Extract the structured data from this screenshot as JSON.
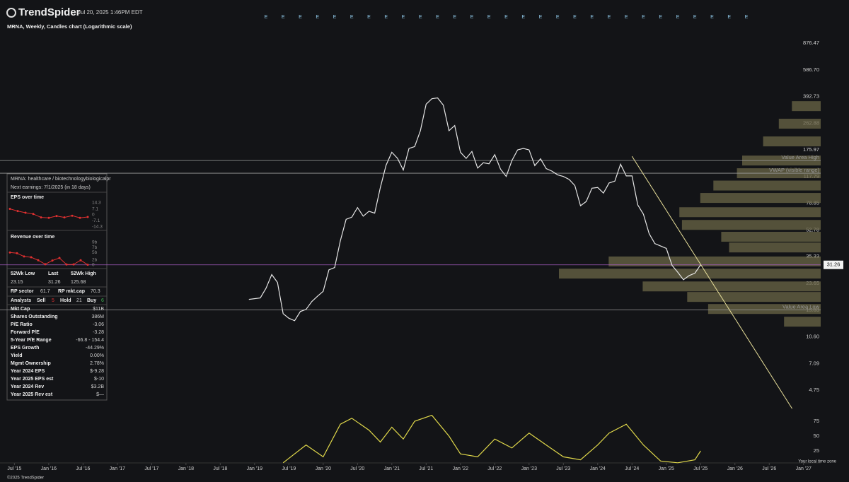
{
  "header": {
    "brand": "TrendSpider",
    "timestamp": "Jul 20, 2025 1:46PM EDT"
  },
  "chart_data": [
    {
      "type": "line",
      "title": "MRNA, Weekly, Candles chart (Logarithmic scale)",
      "log_scale": true,
      "color": "#e6e6e6",
      "x": [
        "2018-12",
        "2019-02",
        "2019-03",
        "2019-04",
        "2019-05",
        "2019-06",
        "2019-07",
        "2019-08",
        "2019-09",
        "2019-10",
        "2019-11",
        "2019-12",
        "2020-01",
        "2020-02",
        "2020-03",
        "2020-04",
        "2020-05",
        "2020-06",
        "2020-07",
        "2020-08",
        "2020-09",
        "2020-10",
        "2020-11",
        "2020-12",
        "2021-01",
        "2021-02",
        "2021-03",
        "2021-04",
        "2021-05",
        "2021-06",
        "2021-07",
        "2021-08",
        "2021-09",
        "2021-10",
        "2021-11",
        "2021-12",
        "2022-01",
        "2022-02",
        "2022-03",
        "2022-04",
        "2022-05",
        "2022-06",
        "2022-07",
        "2022-08",
        "2022-09",
        "2022-10",
        "2022-11",
        "2022-12",
        "2023-01",
        "2023-02",
        "2023-03",
        "2023-04",
        "2023-05",
        "2023-06",
        "2023-07",
        "2023-08",
        "2023-09",
        "2023-10",
        "2023-11",
        "2023-12",
        "2024-01",
        "2024-02",
        "2024-03",
        "2024-04",
        "2024-05",
        "2024-06",
        "2024-07",
        "2024-08",
        "2024-09",
        "2024-10",
        "2024-11",
        "2024-12",
        "2025-01",
        "2025-02",
        "2025-03",
        "2025-04",
        "2025-05",
        "2025-06",
        "2025-07"
      ],
      "values": [
        18.6,
        19,
        22,
        27,
        24,
        15,
        14,
        13.5,
        15.5,
        16,
        18,
        19.5,
        21,
        29,
        30,
        45,
        62,
        64,
        74,
        65,
        70,
        68,
        100,
        140,
        170,
        155,
        130,
        180,
        185,
        235,
        350,
        380,
        385,
        345,
        235,
        254,
        170,
        155,
        172,
        134,
        145,
        143,
        164,
        132,
        118,
        150,
        176,
        180,
        176,
        139,
        154,
        133,
        128,
        121,
        118,
        113,
        103,
        76,
        81,
        99,
        100,
        92,
        107,
        110,
        142,
        119,
        119,
        77,
        67,
        50,
        43,
        41.5,
        40,
        31,
        28,
        25,
        26.6,
        27.6,
        31.26
      ],
      "xlim": [
        2015.29,
        2027.25
      ],
      "xticks": [
        {
          "value": 2015.5,
          "label": "Jul '15"
        },
        {
          "value": 2016,
          "label": "Jan '16"
        },
        {
          "value": 2016.5,
          "label": "Jul '16"
        },
        {
          "value": 2017,
          "label": "Jan '17"
        },
        {
          "value": 2017.5,
          "label": "Jul '17"
        },
        {
          "value": 2018,
          "label": "Jan '18"
        },
        {
          "value": 2018.5,
          "label": "Jul '18"
        },
        {
          "value": 2019,
          "label": "Jan '19"
        },
        {
          "value": 2019.5,
          "label": "Jul '19"
        },
        {
          "value": 2020,
          "label": "Jan '20"
        },
        {
          "value": 2020.5,
          "label": "Jul '20"
        },
        {
          "value": 2021,
          "label": "Jan '21"
        },
        {
          "value": 2021.5,
          "label": "Jul '21"
        },
        {
          "value": 2022,
          "label": "Jan '22"
        },
        {
          "value": 2022.5,
          "label": "Jul '22"
        },
        {
          "value": 2023,
          "label": "Jan '23"
        },
        {
          "value": 2023.5,
          "label": "Jul '23"
        },
        {
          "value": 2024,
          "label": "Jan '24"
        },
        {
          "value": 2024.5,
          "label": "Jul '24"
        },
        {
          "value": 2025,
          "label": "Jan '25"
        },
        {
          "value": 2025.5,
          "label": "Jul '25"
        },
        {
          "value": 2026,
          "label": "Jan '26"
        },
        {
          "value": 2026.5,
          "label": "Jul '26"
        },
        {
          "value": 2027,
          "label": "Jan '27"
        }
      ],
      "ylim": [
        3.53,
        1096
      ],
      "yticks": [
        876.47,
        {
          "value": 586.7,
          "label": "586.70"
        },
        392.73,
        262.88,
        175.97,
        117.79,
        78.85,
        52.78,
        35.33,
        23.65,
        15.83,
        {
          "value": 10.6,
          "label": "10.60"
        },
        7.09,
        4.75
      ],
      "last_price": 31.26,
      "last_price_color": "#a45ac0",
      "reference_lines": [
        {
          "label": "Value Area High",
          "value": 150
        },
        {
          "label": "VWAP (visible range)",
          "value": 124
        },
        {
          "label": "Value Area Low",
          "value": 15.9
        }
      ],
      "trendline": {
        "x": [
          "2024-07",
          "2026-11"
        ],
        "values": [
          160,
          3.6
        ],
        "color": "#e8df9a"
      },
      "volume_profile": {
        "color": "#6b6647",
        "levels": [
          340,
          261,
          200,
          150,
          124,
          103,
          85.5,
          69,
          57,
          47.7,
          40.6,
          32.9,
          27.4,
          22.6,
          19.3,
          16.1,
          13.3
        ],
        "values": [
          11,
          16,
          22,
          30,
          32,
          41,
          46,
          54,
          53,
          38,
          35,
          81,
          100,
          68,
          51,
          43,
          14
        ]
      },
      "earnings": {
        "label": "E",
        "x": [
          "2019-03",
          "2019-06",
          "2019-09",
          "2019-12",
          "2020-03",
          "2020-06",
          "2020-09",
          "2020-12",
          "2021-03",
          "2021-06",
          "2021-09",
          "2021-12",
          "2022-03",
          "2022-06",
          "2022-09",
          "2022-12",
          "2023-03",
          "2023-06",
          "2023-09",
          "2023-12",
          "2024-03",
          "2024-06",
          "2024-09",
          "2024-12",
          "2025-03",
          "2025-06",
          "2025-09",
          "2025-12",
          "2026-03"
        ],
        "color": "#8fc8e8"
      }
    },
    {
      "type": "line",
      "color": "#e0d84a",
      "x": [
        "2019-06",
        "2019-10",
        "2020-01",
        "2020-04",
        "2020-06",
        "2020-09",
        "2020-11",
        "2021-01",
        "2021-03",
        "2021-05",
        "2021-08",
        "2021-11",
        "2022-01",
        "2022-04",
        "2022-07",
        "2022-10",
        "2023-01",
        "2023-04",
        "2023-07",
        "2023-10",
        "2024-01",
        "2024-03",
        "2024-06",
        "2024-09",
        "2024-12",
        "2025-03",
        "2025-06",
        "2025-07"
      ],
      "values": [
        5,
        35,
        15,
        70,
        80,
        60,
        40,
        65,
        45,
        75,
        85,
        50,
        20,
        15,
        45,
        30,
        55,
        35,
        15,
        10,
        35,
        55,
        70,
        35,
        8,
        5,
        10,
        25
      ],
      "xlim": [
        2015.29,
        2027.25
      ],
      "ylim": [
        0,
        100
      ],
      "yticks": [
        25,
        50,
        75
      ]
    }
  ],
  "info_panel": {
    "sector": "MRNA: healthcare / biotechnologybiologicalpr",
    "next_earnings": "Next earnings: 7/1/2025 (in 18 days)",
    "eps": {
      "title": "EPS over time",
      "color": "#e03030",
      "ylim": [
        -14.3,
        14.3
      ],
      "yticks": [
        14.3,
        7.1,
        0,
        -7.1,
        -14.3
      ],
      "values": [
        7.1,
        4.5,
        2.5,
        1,
        -3,
        -3.6,
        -1.4,
        -3,
        -1,
        -3.6,
        -2.5
      ]
    },
    "revenue": {
      "title": "Revenue over time",
      "color": "#e03030",
      "ylim": [
        0,
        9
      ],
      "yticks": [
        {
          "value": 9,
          "label": "9b"
        },
        {
          "value": 7,
          "label": "7b"
        },
        {
          "value": 5,
          "label": "5b"
        },
        {
          "value": 2,
          "label": "2b"
        },
        0
      ],
      "values": [
        5,
        4.7,
        3.4,
        3.1,
        1.9,
        0.3,
        1.8,
        2.8,
        0.2,
        0.24,
        1.9,
        0.1
      ]
    },
    "stats_header": [
      "52Wk Low",
      "Last",
      "52Wk High"
    ],
    "stats": [
      23.15,
      31.26,
      125.68
    ],
    "rp": [
      [
        "RP sector",
        61.7
      ],
      [
        "RP mkt.cap",
        70.3
      ]
    ],
    "analysts": {
      "label": "Analysts",
      "sell": [
        "Sell",
        5
      ],
      "hold": [
        "Hold",
        21
      ],
      "buy": [
        "Buy",
        6
      ]
    },
    "rows": [
      [
        "Mkt Cap",
        "$11B"
      ],
      [
        "Shares Outstanding",
        "386M"
      ],
      [
        "P/E Ratio",
        "-3.06"
      ],
      [
        "Forward P/E",
        "-3.28"
      ],
      [
        "5-Year P/E Range",
        "-66.8 - 154.4"
      ],
      [
        "EPS Growth",
        "-44.29%"
      ],
      [
        "Yield",
        "0.00%"
      ],
      [
        "Mgmt Ownership",
        "2.78%"
      ],
      [
        "Year 2024 EPS",
        "$-9.28"
      ],
      [
        "Year 2025 EPS est",
        "$-10"
      ],
      [
        "Year 2024 Rev",
        "$3.2B"
      ],
      [
        "Year 2025 Rev est",
        "$—"
      ]
    ]
  },
  "footer": {
    "copyright": "©2025 TrendSpider",
    "timezone": "Your local time zone"
  }
}
